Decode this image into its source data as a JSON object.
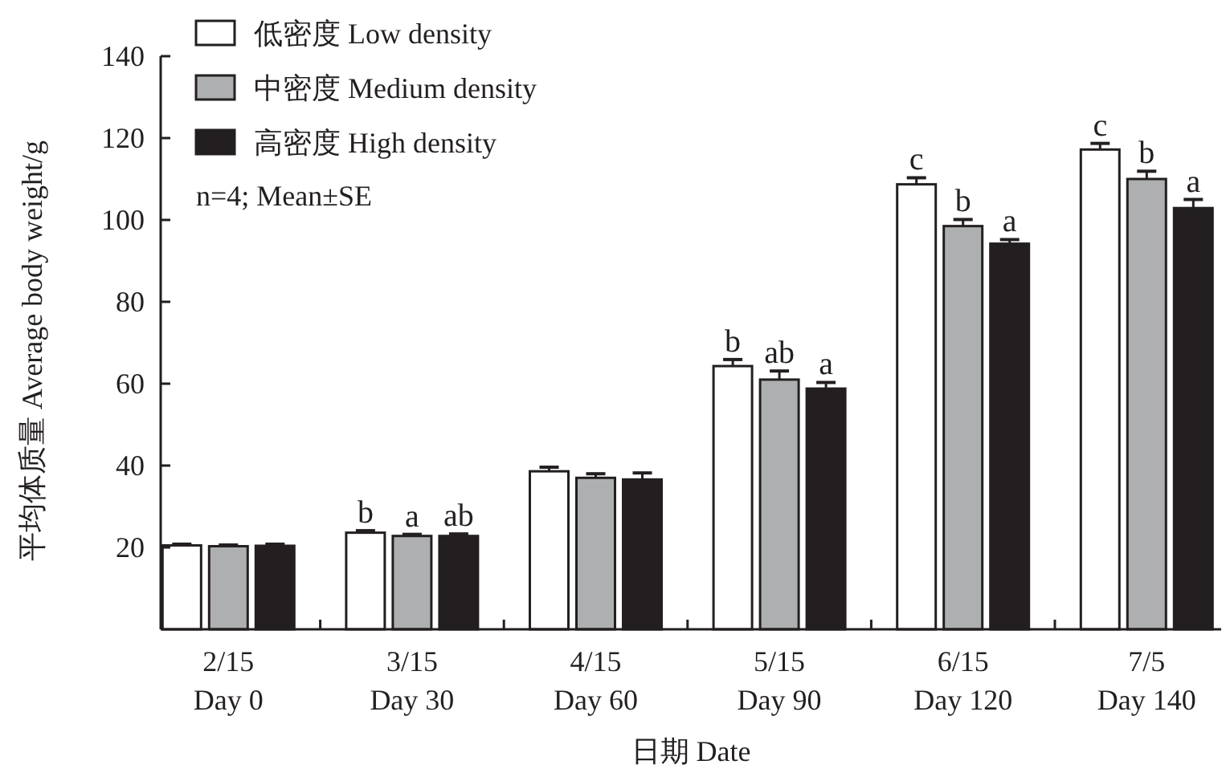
{
  "chart_data": {
    "type": "bar",
    "xlabel": "日期 Date",
    "ylabel": "平均体质量 Average body weight/g",
    "categories": [
      "2/15\nDay 0",
      "3/15\nDay 30",
      "4/15\nDay 60",
      "5/15\nDay 90",
      "6/15\nDay 120",
      "7/5\nDay 140"
    ],
    "series": [
      {
        "name": "低密度 Low density",
        "color": "#ffffff",
        "values": [
          20.5,
          23.6,
          38.6,
          64.3,
          108.7,
          117.2
        ],
        "errors": [
          0.3,
          0.5,
          1.0,
          1.6,
          1.6,
          1.5
        ],
        "value_labels": [
          null,
          "b",
          null,
          "b",
          "c",
          "c"
        ]
      },
      {
        "name": "中密度 Medium density",
        "color": "#aeafb1",
        "values": [
          20.3,
          22.8,
          37.0,
          61.0,
          98.5,
          110.0
        ],
        "errors": [
          0.3,
          0.4,
          1.0,
          2.1,
          1.6,
          1.9
        ],
        "value_labels": [
          null,
          "a",
          null,
          "ab",
          "b",
          "b"
        ]
      },
      {
        "name": "高密度 High density",
        "color": "#231f20",
        "values": [
          20.4,
          22.8,
          36.6,
          58.8,
          94.2,
          102.9
        ],
        "errors": [
          0.4,
          0.5,
          1.6,
          1.5,
          1.0,
          2.1
        ],
        "value_labels": [
          null,
          "ab",
          null,
          "a",
          "a",
          "a"
        ]
      }
    ],
    "ylim": [
      0,
      140
    ],
    "yticks": [
      20,
      40,
      60,
      80,
      100,
      120,
      140
    ],
    "legend": "top left",
    "grid": false,
    "annotations": [
      "n=4; Mean±SE"
    ]
  }
}
